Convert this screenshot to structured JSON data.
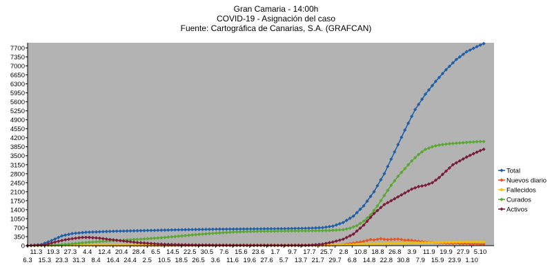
{
  "chart_data": {
    "type": "line",
    "title": [
      "Gran Camaria - 14:00h",
      "COVID-19 - Asignación del caso",
      "Fuente: Cartográfica de Canarias, S.A. (GRAFCAN)"
    ],
    "xlabel": "",
    "ylabel": "",
    "ylim": [
      0,
      7900
    ],
    "yticks": [
      0,
      350,
      700,
      1050,
      1400,
      1750,
      2100,
      2450,
      2800,
      3150,
      3500,
      3850,
      4200,
      4550,
      4900,
      5250,
      5600,
      5950,
      6300,
      6650,
      7000,
      7350,
      7700
    ],
    "x_row1": [
      "11.3",
      "19.3",
      "27.3",
      "4.4",
      "12.4",
      "20.4",
      "28.4",
      "6.5",
      "14.5",
      "22.5",
      "30.5",
      "7.6",
      "15.6",
      "23.6",
      "1.7",
      "9.7",
      "17.7",
      "25.7",
      "2.8",
      "10.8",
      "18.8",
      "26.8",
      "3.9",
      "11.9",
      "19.9",
      "27.9",
      "5.10"
    ],
    "x_row2": [
      "6.3",
      "15.3",
      "23.3",
      "31.3",
      "8.4",
      "16.4",
      "24.4",
      "2.5",
      "10.5",
      "18.5",
      "26.5",
      "3.6",
      "11.6",
      "19.6",
      "27.6",
      "5.7",
      "13.7",
      "21.7",
      "29.7",
      "6.8",
      "14.8",
      "22.8",
      "30.8",
      "7.9",
      "15.9",
      "23.9",
      "1.10"
    ],
    "grid": false,
    "legend_position": "right",
    "plot_background": "#b3b3b3",
    "series": [
      {
        "name": "Total",
        "color": "#1f5fa8",
        "marker": "diamond",
        "keypoints": [
          [
            0,
            0
          ],
          [
            8,
            40
          ],
          [
            14,
            200
          ],
          [
            20,
            380
          ],
          [
            26,
            470
          ],
          [
            34,
            520
          ],
          [
            50,
            560
          ],
          [
            70,
            590
          ],
          [
            90,
            620
          ],
          [
            110,
            640
          ],
          [
            130,
            650
          ],
          [
            150,
            660
          ],
          [
            165,
            680
          ],
          [
            172,
            700
          ],
          [
            178,
            760
          ],
          [
            184,
            900
          ],
          [
            190,
            1150
          ],
          [
            196,
            1550
          ],
          [
            202,
            2100
          ],
          [
            208,
            2800
          ],
          [
            214,
            3650
          ],
          [
            220,
            4500
          ],
          [
            226,
            5300
          ],
          [
            232,
            5900
          ],
          [
            238,
            6400
          ],
          [
            244,
            6850
          ],
          [
            250,
            7250
          ],
          [
            256,
            7550
          ],
          [
            262,
            7750
          ],
          [
            267,
            7900
          ]
        ]
      },
      {
        "name": "Nuevos diario",
        "color": "#e8541a",
        "marker": "diamond",
        "keypoints": [
          [
            0,
            0
          ],
          [
            10,
            15
          ],
          [
            16,
            30
          ],
          [
            22,
            25
          ],
          [
            30,
            12
          ],
          [
            40,
            6
          ],
          [
            60,
            3
          ],
          [
            100,
            2
          ],
          [
            160,
            3
          ],
          [
            176,
            10
          ],
          [
            182,
            30
          ],
          [
            186,
            60
          ],
          [
            190,
            100
          ],
          [
            194,
            140
          ],
          [
            198,
            200
          ],
          [
            201,
            260
          ],
          [
            203,
            180
          ],
          [
            205,
            320
          ],
          [
            207,
            220
          ],
          [
            209,
            280
          ],
          [
            211,
            190
          ],
          [
            213,
            300
          ],
          [
            215,
            200
          ],
          [
            217,
            310
          ],
          [
            219,
            170
          ],
          [
            221,
            250
          ],
          [
            223,
            180
          ],
          [
            225,
            230
          ],
          [
            227,
            140
          ],
          [
            229,
            200
          ],
          [
            231,
            120
          ],
          [
            233,
            160
          ],
          [
            235,
            110
          ],
          [
            237,
            150
          ],
          [
            239,
            100
          ],
          [
            241,
            130
          ],
          [
            243,
            90
          ],
          [
            245,
            110
          ],
          [
            247,
            80
          ],
          [
            250,
            100
          ],
          [
            253,
            70
          ],
          [
            256,
            85
          ],
          [
            259,
            60
          ],
          [
            262,
            70
          ],
          [
            265,
            55
          ],
          [
            267,
            60
          ]
        ]
      },
      {
        "name": "Fallecidos",
        "color": "#f2c200",
        "marker": "diamond",
        "keypoints": [
          [
            0,
            0
          ],
          [
            12,
            2
          ],
          [
            20,
            10
          ],
          [
            28,
            16
          ],
          [
            40,
            20
          ],
          [
            80,
            22
          ],
          [
            160,
            22
          ],
          [
            176,
            25
          ],
          [
            186,
            35
          ],
          [
            196,
            55
          ],
          [
            206,
            75
          ],
          [
            216,
            95
          ],
          [
            226,
            110
          ],
          [
            236,
            125
          ],
          [
            246,
            135
          ],
          [
            256,
            145
          ],
          [
            267,
            150
          ]
        ]
      },
      {
        "name": "Curados",
        "color": "#5aa832",
        "marker": "diamond",
        "keypoints": [
          [
            0,
            0
          ],
          [
            16,
            20
          ],
          [
            24,
            60
          ],
          [
            32,
            110
          ],
          [
            40,
            150
          ],
          [
            50,
            190
          ],
          [
            60,
            230
          ],
          [
            70,
            270
          ],
          [
            80,
            320
          ],
          [
            90,
            380
          ],
          [
            100,
            440
          ],
          [
            110,
            490
          ],
          [
            120,
            530
          ],
          [
            135,
            560
          ],
          [
            150,
            570
          ],
          [
            165,
            580
          ],
          [
            176,
            590
          ],
          [
            184,
            620
          ],
          [
            188,
            680
          ],
          [
            192,
            780
          ],
          [
            196,
            950
          ],
          [
            200,
            1200
          ],
          [
            204,
            1550
          ],
          [
            208,
            1950
          ],
          [
            212,
            2350
          ],
          [
            216,
            2700
          ],
          [
            220,
            3000
          ],
          [
            224,
            3300
          ],
          [
            228,
            3550
          ],
          [
            232,
            3750
          ],
          [
            236,
            3850
          ],
          [
            240,
            3920
          ],
          [
            246,
            3970
          ],
          [
            252,
            4000
          ],
          [
            258,
            4030
          ],
          [
            263,
            4050
          ],
          [
            267,
            4060
          ]
        ]
      },
      {
        "name": "Activos",
        "color": "#7a1c3a",
        "marker": "diamond",
        "keypoints": [
          [
            0,
            0
          ],
          [
            10,
            30
          ],
          [
            16,
            140
          ],
          [
            22,
            230
          ],
          [
            28,
            290
          ],
          [
            32,
            320
          ],
          [
            36,
            320
          ],
          [
            42,
            290
          ],
          [
            48,
            240
          ],
          [
            56,
            180
          ],
          [
            64,
            120
          ],
          [
            72,
            80
          ],
          [
            80,
            50
          ],
          [
            90,
            35
          ],
          [
            100,
            25
          ],
          [
            120,
            18
          ],
          [
            150,
            15
          ],
          [
            165,
            20
          ],
          [
            172,
            60
          ],
          [
            178,
            140
          ],
          [
            184,
            250
          ],
          [
            190,
            450
          ],
          [
            196,
            800
          ],
          [
            202,
            1250
          ],
          [
            208,
            1600
          ],
          [
            212,
            1750
          ],
          [
            216,
            1900
          ],
          [
            220,
            2050
          ],
          [
            224,
            2200
          ],
          [
            228,
            2300
          ],
          [
            232,
            2350
          ],
          [
            236,
            2450
          ],
          [
            240,
            2650
          ],
          [
            244,
            2900
          ],
          [
            248,
            3150
          ],
          [
            252,
            3300
          ],
          [
            256,
            3450
          ],
          [
            260,
            3580
          ],
          [
            264,
            3700
          ],
          [
            267,
            3780
          ]
        ]
      }
    ]
  }
}
